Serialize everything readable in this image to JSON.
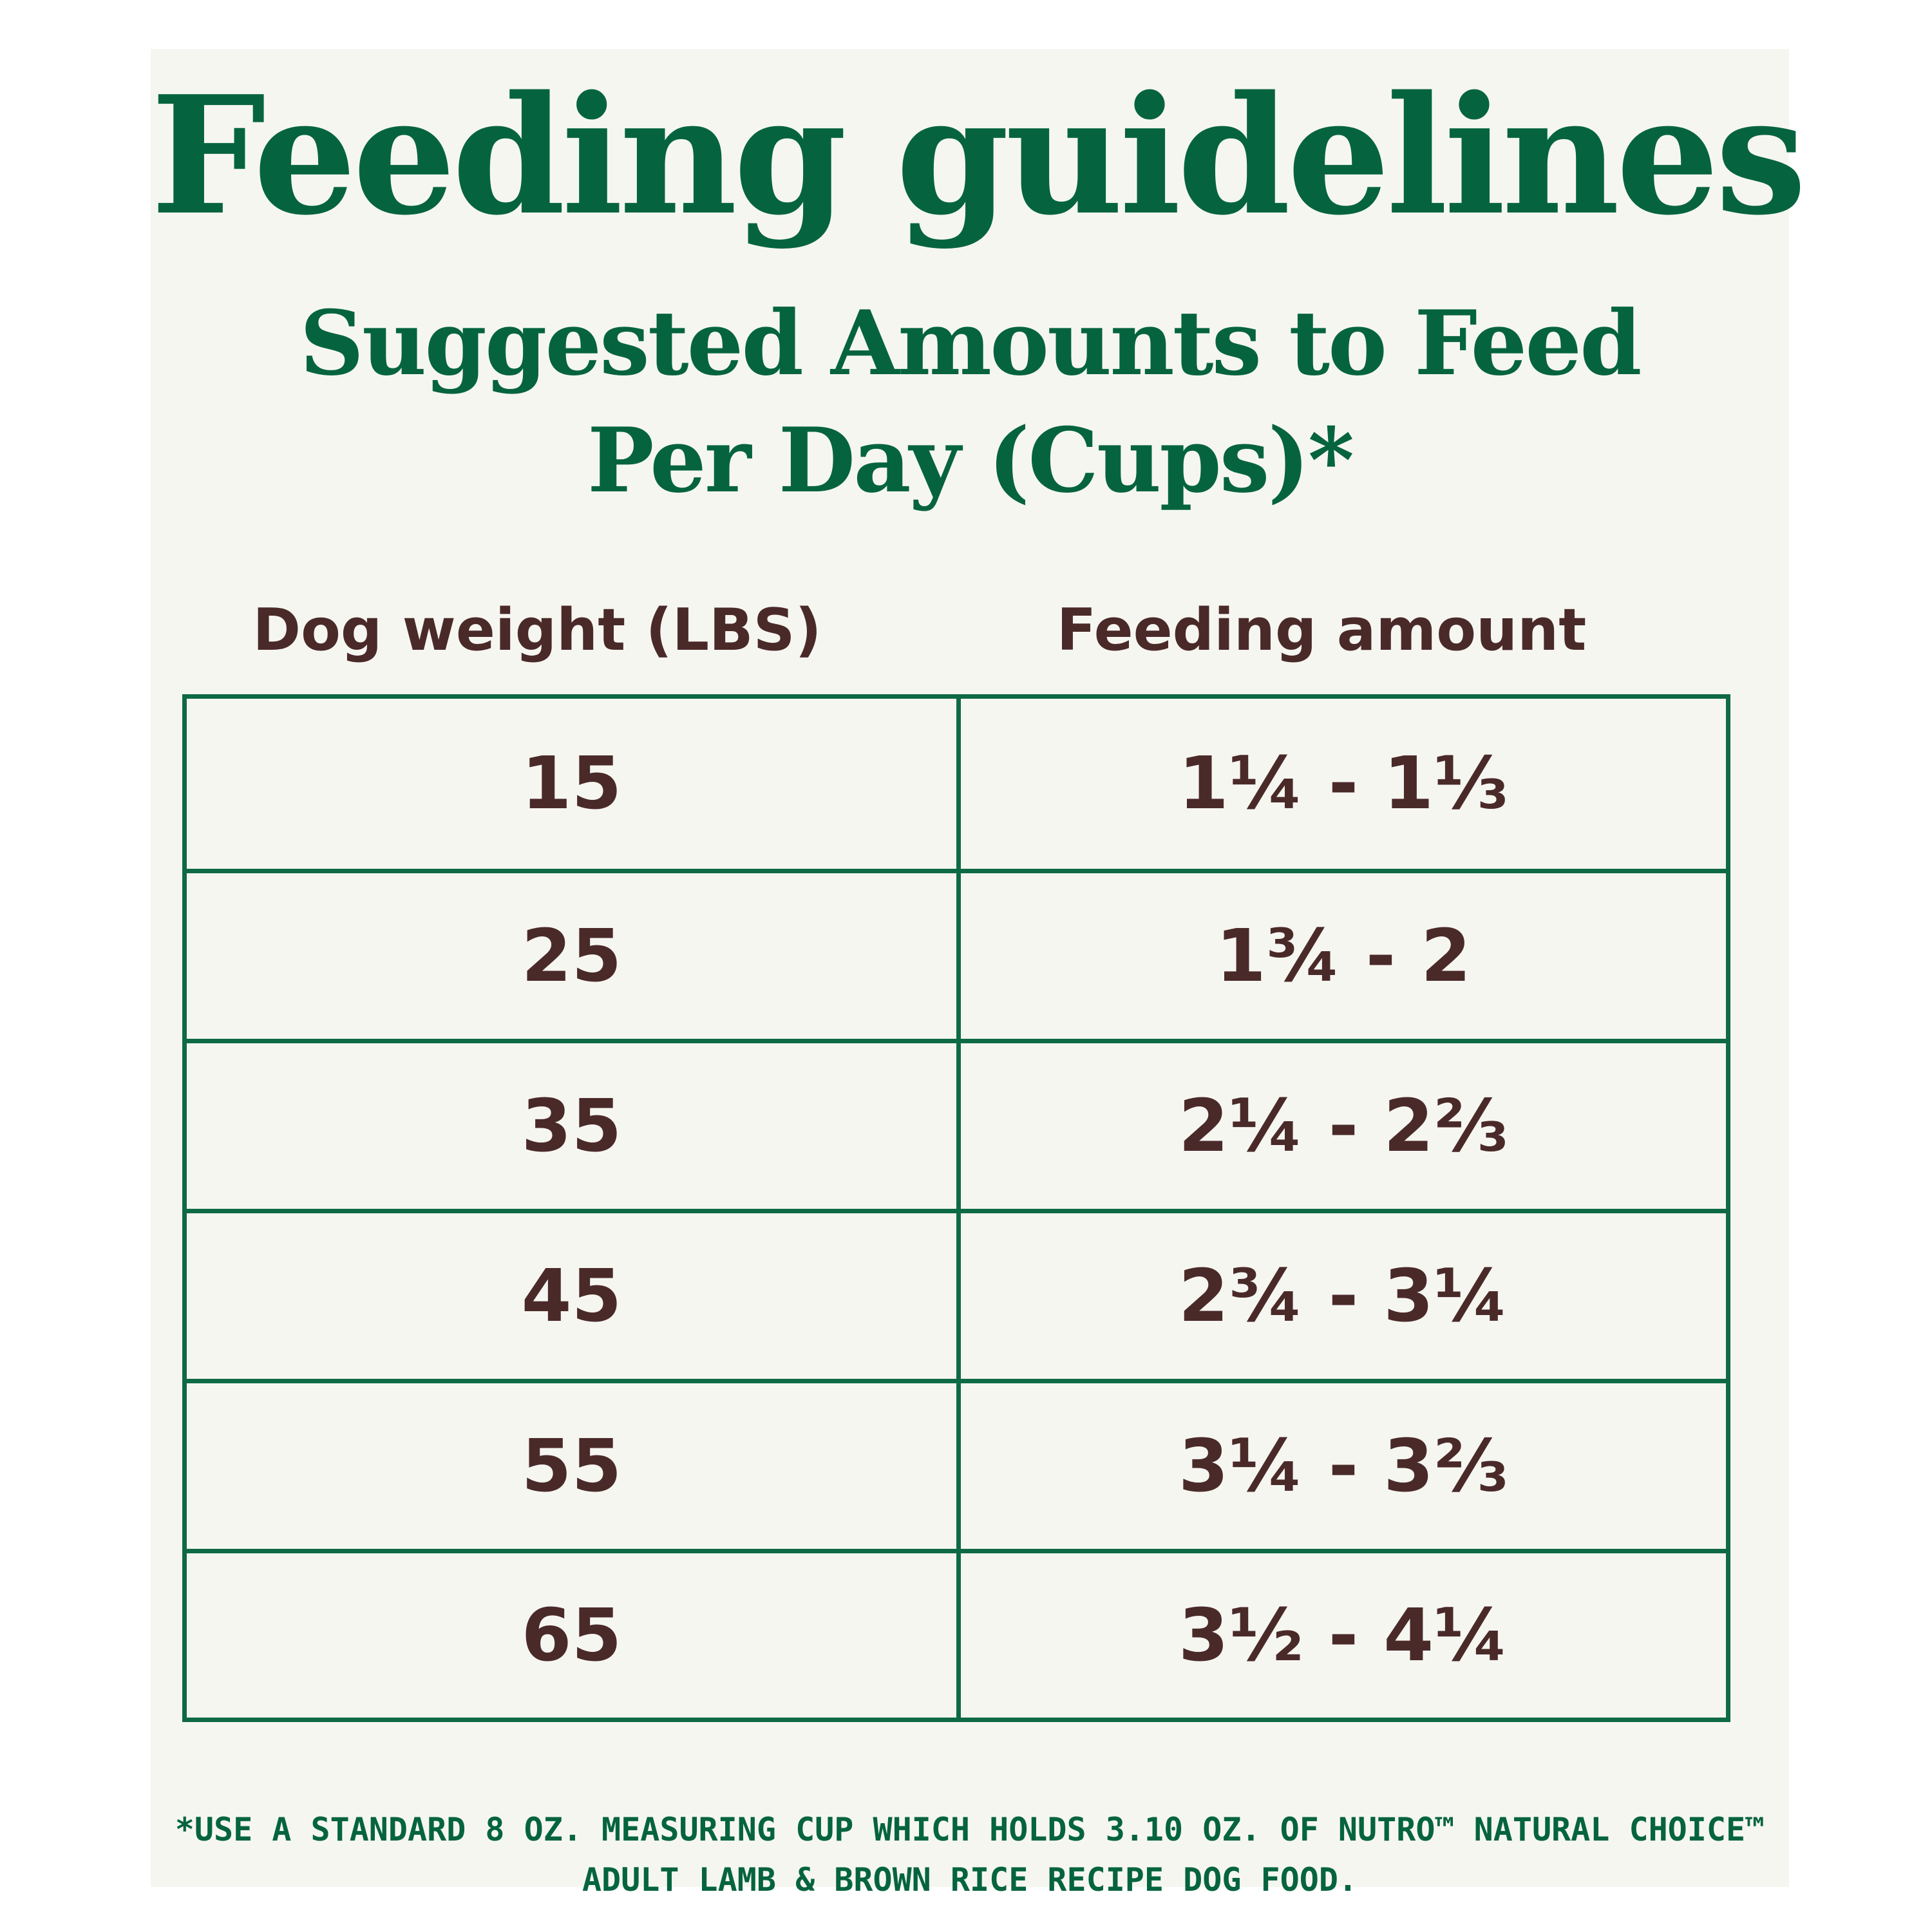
{
  "title": "Feeding guidelines",
  "subtitle_line1": "Suggested Amounts to Feed",
  "subtitle_line2": "Per Day (Cups)*",
  "table": {
    "headers": {
      "weight": "Dog weight (LBS)",
      "amount": "Feeding amount"
    },
    "rows": [
      {
        "weight": "15",
        "amount": "1¼ - 1⅓"
      },
      {
        "weight": "25",
        "amount": "1¾ - 2"
      },
      {
        "weight": "35",
        "amount": "2¼  - 2⅔"
      },
      {
        "weight": "45",
        "amount": "2¾ - 3¼"
      },
      {
        "weight": "55",
        "amount": "3¼ - 3⅔"
      },
      {
        "weight": "65",
        "amount": "3½ - 4¼"
      }
    ]
  },
  "footnote_line1": "*USE A STANDARD 8 OZ. MEASURING CUP WHICH HOLDS 3.10 OZ. OF NUTRO™ NATURAL CHOICE™",
  "footnote_line2": "ADULT LAMB & BROWN RICE RECIPE DOG FOOD.",
  "colors": {
    "heading_green": "#05643f",
    "table_border": "#0e6a45",
    "text_brown": "#4a2a29",
    "panel_bg": "#f6f6f1"
  }
}
